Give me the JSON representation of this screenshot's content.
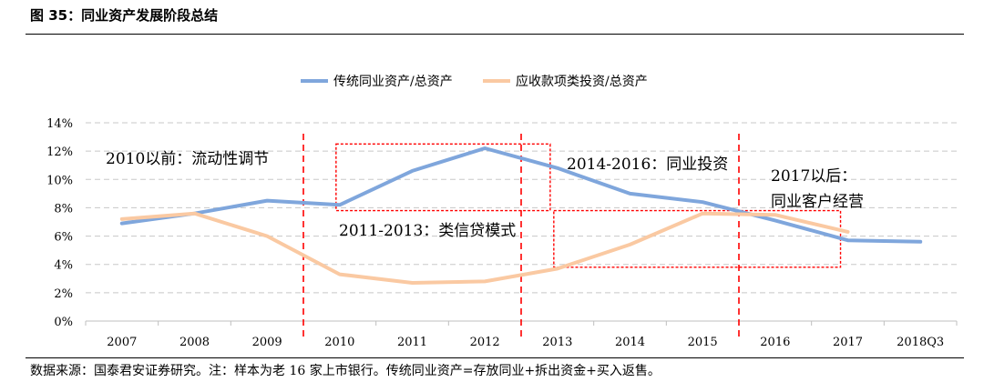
{
  "figure": {
    "title": "图 35：同业资产发展阶段总结",
    "source": "数据来源：国泰君安证券研究。注：样本为老 16 家上市银行。传统同业资产=存放同业+拆出资金+买入返售。"
  },
  "chart_data": {
    "type": "line",
    "categories": [
      "2007",
      "2008",
      "2009",
      "2010",
      "2011",
      "2012",
      "2013",
      "2014",
      "2015",
      "2016",
      "2017",
      "2018Q3"
    ],
    "series": [
      {
        "name": "传统同业资产/总资产",
        "color": "#7FA6DC",
        "values": [
          6.9,
          7.6,
          8.5,
          8.2,
          10.6,
          12.2,
          10.8,
          9.0,
          8.4,
          7.1,
          5.7,
          5.6
        ]
      },
      {
        "name": "应收款项类投资/总资产",
        "color": "#FAC9A2",
        "values": [
          7.2,
          7.6,
          6.0,
          3.3,
          2.7,
          2.8,
          3.7,
          5.4,
          7.6,
          7.5,
          6.3,
          null
        ]
      }
    ],
    "y_axis": {
      "min": 0,
      "max": 14,
      "step": 2,
      "tick_labels": [
        "0%",
        "2%",
        "4%",
        "6%",
        "8%",
        "10%",
        "12%",
        "14%"
      ]
    },
    "grid": true,
    "legend_position": "top-center",
    "phase_dividers_after": [
      "2009",
      "2012",
      "2015"
    ],
    "annotations": [
      {
        "text": "2010以前：流动性调节"
      },
      {
        "text": "2011-2013：类信贷模式"
      },
      {
        "text": "2014-2016：同业投资"
      },
      {
        "text": "2017以后："
      },
      {
        "text": "同业客户经营"
      }
    ],
    "highlight_boxes": [
      {
        "from": "2010",
        "to": "2012",
        "y_range": [
          7.8,
          12.5
        ]
      },
      {
        "from": "2013",
        "to": "2016",
        "y_range": [
          3.8,
          7.8
        ]
      }
    ],
    "divider_color": "#FF0000"
  }
}
